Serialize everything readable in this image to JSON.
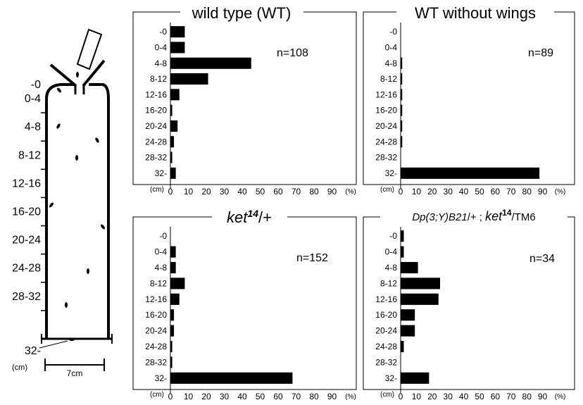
{
  "column_diagram": {
    "height_labels": [
      "-0",
      "0-4",
      "4-8",
      "8-12",
      "12-16",
      "16-20",
      "20-24",
      "24-28",
      "28-32",
      "32-"
    ],
    "unit_label": "(cm)",
    "scale_label": "7cm"
  },
  "chart_data": [
    {
      "type": "bar",
      "orientation": "horizontal",
      "title": "wild type (WT)",
      "n_label": "n=108",
      "categories": [
        "-0",
        "0-4",
        "4-8",
        "8-12",
        "12-16",
        "16-20",
        "20-24",
        "24-28",
        "28-32",
        "32-"
      ],
      "values": [
        8,
        8,
        45,
        21,
        5,
        1,
        4,
        2,
        1,
        3
      ],
      "y_unit": "(cm)",
      "x_unit": "(%)",
      "x_ticks": [
        "0",
        "10",
        "20",
        "30",
        "40",
        "50",
        "60",
        "70",
        "80",
        "90"
      ],
      "xlim": [
        0,
        100
      ]
    },
    {
      "type": "bar",
      "orientation": "horizontal",
      "title": "WT without wings",
      "n_label": "n=89",
      "categories": [
        "-0",
        "0-4",
        "4-8",
        "8-12",
        "12-16",
        "16-20",
        "20-24",
        "24-28",
        "28-32",
        "32-"
      ],
      "values": [
        0,
        0,
        1,
        1,
        1,
        1,
        1,
        1,
        0,
        88
      ],
      "y_unit": "(cm)",
      "x_unit": "(%)",
      "x_ticks": [
        "0",
        "10",
        "20",
        "30",
        "40",
        "50",
        "60",
        "70",
        "80",
        "90"
      ],
      "xlim": [
        0,
        100
      ]
    },
    {
      "type": "bar",
      "orientation": "horizontal",
      "title": "ket14/+",
      "title_parts": {
        "base": "ket",
        "sup": "14",
        "rest": "/+"
      },
      "n_label": "n=152",
      "categories": [
        "-0",
        "0-4",
        "4-8",
        "8-12",
        "12-16",
        "16-20",
        "20-24",
        "24-28",
        "28-32",
        "32-"
      ],
      "values": [
        0,
        3,
        3,
        8,
        5,
        2,
        2,
        1,
        1,
        68
      ],
      "y_unit": "(cm)",
      "x_unit": "(%)",
      "x_ticks": [
        "0",
        "10",
        "20",
        "30",
        "40",
        "50",
        "60",
        "70",
        "80",
        "90"
      ],
      "xlim": [
        0,
        100
      ]
    },
    {
      "type": "bar",
      "orientation": "horizontal",
      "title": "Dp(3;Y)B21/+ ; ket14/TM6",
      "title_parts": {
        "part1": "Dp(3;Y)B21",
        "part2": "/+ ; ",
        "part3": "ket",
        "sup": "14",
        "part4": "/TM6"
      },
      "n_label": "n=34",
      "categories": [
        "-0",
        "0-4",
        "4-8",
        "8-12",
        "12-16",
        "16-20",
        "20-24",
        "24-28",
        "28-32",
        "32-"
      ],
      "values": [
        2,
        2,
        11,
        25,
        24,
        9,
        9,
        2,
        0,
        18
      ],
      "y_unit": "(cm)",
      "x_unit": "(%)",
      "x_ticks": [
        "0",
        "10",
        "20",
        "30",
        "40",
        "50",
        "60",
        "70",
        "80",
        "90"
      ],
      "xlim": [
        0,
        100
      ]
    }
  ]
}
